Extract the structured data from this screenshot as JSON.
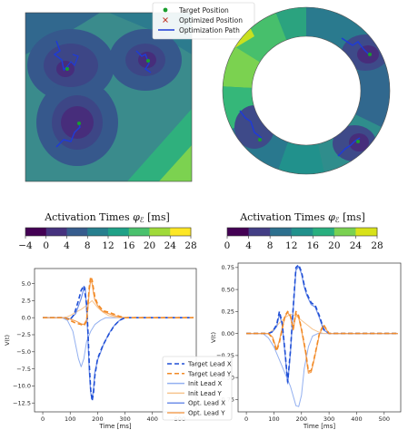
{
  "legend_top": {
    "items": [
      {
        "label": "Target Position",
        "marker": "dot",
        "color": "#1a9e2e"
      },
      {
        "label": "Optimized Position",
        "marker": "x",
        "color": "#c0392b"
      },
      {
        "label": "Optimization Path",
        "marker": "line",
        "color": "#1f3bd6"
      }
    ]
  },
  "colorbars": [
    {
      "title": "Activation Times",
      "symbol": "φ",
      "symbol_sub": "ℰ",
      "unit": "[ms]",
      "ticks": [
        "−4",
        "0",
        "4",
        "8",
        "12",
        "16",
        "20",
        "24",
        "28"
      ],
      "colors": [
        "#440154",
        "#46327e",
        "#365c8d",
        "#277f8e",
        "#1fa187",
        "#4ac16d",
        "#a0da39",
        "#fde725"
      ]
    },
    {
      "title": "Activation Times",
      "symbol": "φ",
      "symbol_sub": "ℰ",
      "unit": "[ms]",
      "ticks": [
        "0",
        "4",
        "8",
        "12",
        "16",
        "20",
        "24",
        "28"
      ],
      "colors": [
        "#440154",
        "#433e85",
        "#2d708e",
        "#21918c",
        "#29af7f",
        "#7ad151",
        "#d8e219"
      ]
    }
  ],
  "chart_data": [
    {
      "type": "line",
      "xlabel": "Time [ms]",
      "ylabel": "V(t)",
      "xlim": [
        -30,
        560
      ],
      "ylim": [
        -13.8,
        7.2
      ],
      "xticks": [
        "0",
        "100",
        "200",
        "300",
        "400",
        "500"
      ],
      "xtick_values": [
        0,
        100,
        200,
        300,
        400,
        500
      ],
      "yticks": [
        "5.0",
        "2.5",
        "0.0",
        "−2.5",
        "−5.0",
        "−7.5",
        "−10.0",
        "−12.5"
      ],
      "ytick_values": [
        5,
        2.5,
        0,
        -2.5,
        -5,
        -7.5,
        -10,
        -12.5
      ],
      "series": [
        {
          "name": "Target Lead X",
          "color": "#1f4fd6",
          "dash": "5,3",
          "width": 1.6,
          "x": [
            0,
            80,
            100,
            115,
            130,
            140,
            150,
            160,
            165,
            170,
            175,
            180,
            185,
            190,
            200,
            210,
            220,
            240,
            260,
            280,
            300,
            550
          ],
          "y": [
            0,
            0,
            -0.3,
            0.5,
            2.5,
            4.0,
            4.7,
            2.0,
            -2.0,
            -7.0,
            -10.5,
            -12.2,
            -11.0,
            -8.5,
            -6.0,
            -5.0,
            -4.0,
            -2.5,
            -1.2,
            -0.4,
            0,
            0
          ]
        },
        {
          "name": "Target Lead Y",
          "color": "#f28a25",
          "dash": "5,3",
          "width": 1.6,
          "x": [
            0,
            80,
            100,
            120,
            140,
            150,
            160,
            165,
            170,
            175,
            180,
            185,
            190,
            200,
            210,
            220,
            240,
            260,
            280,
            300,
            550
          ],
          "y": [
            0,
            0,
            -0.4,
            -0.8,
            -1.0,
            -1.2,
            -0.5,
            2.0,
            4.5,
            6.0,
            5.5,
            4.2,
            3.0,
            2.0,
            1.5,
            1.0,
            0.8,
            0.5,
            0.2,
            0,
            0
          ]
        },
        {
          "name": "Init Lead X",
          "color": "#93b0f0",
          "dash": "",
          "width": 1.0,
          "x": [
            0,
            70,
            90,
            110,
            130,
            140,
            150,
            160,
            175,
            190,
            210,
            230,
            260,
            300,
            550
          ],
          "y": [
            0,
            0,
            -0.4,
            -2.0,
            -6.0,
            -7.2,
            -6.0,
            -3.5,
            -2.0,
            -1.0,
            -0.4,
            0,
            0,
            0,
            0
          ]
        },
        {
          "name": "Init Lead Y",
          "color": "#f7c48e",
          "dash": "",
          "width": 1.0,
          "x": [
            0,
            80,
            100,
            120,
            140,
            160,
            180,
            200,
            220,
            240,
            260,
            280,
            550
          ],
          "y": [
            0,
            0,
            0.3,
            0.8,
            1.2,
            1.8,
            2.5,
            1.5,
            0.8,
            0.3,
            0.1,
            0,
            0
          ]
        },
        {
          "name": "Opt. Lead X",
          "color": "#6f8fe8",
          "dash": "",
          "width": 1.2,
          "x": [
            0,
            80,
            100,
            120,
            140,
            150,
            155,
            160,
            165,
            170,
            175,
            180,
            185,
            190,
            200,
            210,
            220,
            240,
            260,
            280,
            300,
            550
          ],
          "y": [
            0,
            0,
            -0.2,
            0.6,
            2.8,
            4.3,
            4.4,
            1.2,
            -3.0,
            -8.0,
            -11.0,
            -12.0,
            -10.5,
            -8.0,
            -6.2,
            -5.2,
            -4.1,
            -2.4,
            -1.2,
            -0.4,
            0,
            0
          ]
        },
        {
          "name": "Opt. Lead Y",
          "color": "#f5a35a",
          "dash": "",
          "width": 1.2,
          "x": [
            0,
            80,
            100,
            120,
            140,
            150,
            160,
            165,
            170,
            175,
            180,
            185,
            190,
            200,
            210,
            220,
            240,
            260,
            280,
            300,
            550
          ],
          "y": [
            0,
            0,
            -0.2,
            -0.5,
            -0.9,
            -1.0,
            -0.3,
            1.5,
            4.0,
            5.5,
            5.0,
            3.6,
            2.6,
            1.8,
            1.2,
            0.9,
            0.6,
            0.3,
            0.1,
            0,
            0
          ]
        }
      ]
    },
    {
      "type": "line",
      "xlabel": "Time [ms]",
      "ylabel": "V(t)",
      "xlim": [
        -30,
        560
      ],
      "ylim": [
        -0.89,
        0.8
      ],
      "xticks": [
        "0",
        "100",
        "200",
        "300",
        "400",
        "500"
      ],
      "xtick_values": [
        0,
        100,
        200,
        300,
        400,
        500
      ],
      "yticks": [
        "0.75",
        "0.50",
        "0.25",
        "0.00",
        "−0.25",
        "−0.50",
        "−0.75"
      ],
      "ytick_values": [
        0.75,
        0.5,
        0.25,
        0,
        -0.25,
        -0.5,
        -0.75
      ],
      "series": [
        {
          "name": "Target Lead X",
          "color": "#1f4fd6",
          "dash": "5,3",
          "width": 1.6,
          "x": [
            0,
            80,
            95,
            110,
            120,
            130,
            140,
            150,
            160,
            170,
            180,
            190,
            200,
            210,
            220,
            235,
            250,
            265,
            280,
            300,
            550
          ],
          "y": [
            0,
            0,
            0.02,
            0.1,
            0.25,
            0.12,
            -0.2,
            -0.55,
            -0.2,
            0.3,
            0.75,
            0.78,
            0.7,
            0.55,
            0.45,
            0.35,
            0.32,
            0.2,
            0.05,
            0,
            0
          ]
        },
        {
          "name": "Target Lead Y",
          "color": "#f28a25",
          "dash": "5,3",
          "width": 1.6,
          "x": [
            0,
            80,
            95,
            110,
            120,
            130,
            140,
            150,
            160,
            170,
            180,
            190,
            200,
            215,
            225,
            235,
            245,
            255,
            265,
            280,
            300,
            550
          ],
          "y": [
            0,
            0,
            -0.05,
            -0.2,
            -0.1,
            0.05,
            0.2,
            0.25,
            0.2,
            0.05,
            0.25,
            0.2,
            0.05,
            -0.2,
            -0.43,
            -0.42,
            -0.3,
            -0.15,
            0,
            0.1,
            0,
            0
          ]
        },
        {
          "name": "Init Lead X",
          "color": "#93b0f0",
          "dash": "",
          "width": 1.0,
          "x": [
            0,
            60,
            80,
            100,
            120,
            140,
            160,
            180,
            190,
            200,
            210,
            225,
            240,
            260,
            280,
            300,
            550
          ],
          "y": [
            0,
            0,
            -0.05,
            -0.15,
            -0.3,
            -0.45,
            -0.6,
            -0.82,
            -0.83,
            -0.7,
            -0.4,
            -0.15,
            -0.03,
            0,
            0,
            0,
            0
          ]
        },
        {
          "name": "Init Lead Y",
          "color": "#f7c48e",
          "dash": "",
          "width": 1.0,
          "x": [
            0,
            80,
            100,
            120,
            140,
            160,
            180,
            200,
            220,
            240,
            260,
            280,
            550
          ],
          "y": [
            0,
            0,
            0.05,
            0.12,
            0.18,
            0.22,
            0.2,
            0.15,
            0.1,
            0.05,
            0.02,
            0,
            0
          ]
        },
        {
          "name": "Opt. Lead X",
          "color": "#6f8fe8",
          "dash": "",
          "width": 1.2,
          "x": [
            0,
            80,
            95,
            110,
            120,
            130,
            140,
            150,
            160,
            170,
            180,
            190,
            200,
            210,
            220,
            235,
            250,
            265,
            280,
            300,
            550
          ],
          "y": [
            0,
            0,
            0.02,
            0.08,
            0.22,
            0.1,
            -0.22,
            -0.57,
            -0.22,
            0.28,
            0.72,
            0.76,
            0.68,
            0.53,
            0.43,
            0.33,
            0.3,
            0.18,
            0.04,
            0,
            0
          ]
        },
        {
          "name": "Opt. Lead Y",
          "color": "#f5a35a",
          "dash": "",
          "width": 1.2,
          "x": [
            0,
            80,
            95,
            110,
            120,
            130,
            140,
            150,
            160,
            170,
            180,
            190,
            200,
            215,
            225,
            235,
            245,
            255,
            265,
            280,
            300,
            550
          ],
          "y": [
            0,
            0,
            -0.04,
            -0.18,
            -0.08,
            0.06,
            0.19,
            0.24,
            0.19,
            0.04,
            0.23,
            0.18,
            0.04,
            -0.22,
            -0.45,
            -0.44,
            -0.31,
            -0.16,
            -0.01,
            0.09,
            0,
            0
          ]
        }
      ]
    }
  ],
  "legend_bottom": {
    "items": [
      {
        "label": "Target Lead X",
        "color": "#1f4fd6",
        "dash": "5,3"
      },
      {
        "label": "Target Lead Y",
        "color": "#f28a25",
        "dash": "5,3"
      },
      {
        "label": "Init Lead X",
        "color": "#93b0f0",
        "dash": ""
      },
      {
        "label": "Init Lead Y",
        "color": "#f7c48e",
        "dash": ""
      },
      {
        "label": "Opt. Lead X",
        "color": "#6f8fe8",
        "dash": ""
      },
      {
        "label": "Opt. Lead Y",
        "color": "#f5a35a",
        "dash": ""
      }
    ]
  }
}
